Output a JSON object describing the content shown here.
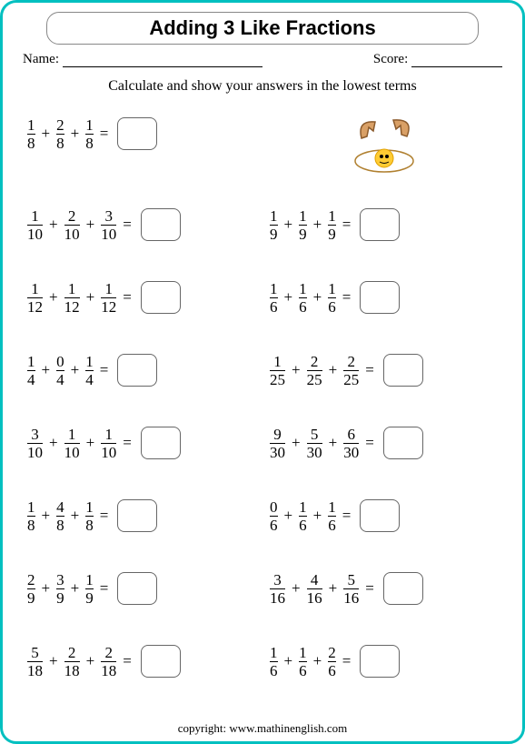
{
  "title": "Adding 3 Like Fractions",
  "name_label": "Name:",
  "score_label": "Score:",
  "instructions": "Calculate and show your answers in the lowest terms",
  "footer": "copyright:   www.mathinenglish.com",
  "problems": {
    "left": [
      {
        "f": [
          [
            1,
            8
          ],
          [
            2,
            8
          ],
          [
            1,
            8
          ]
        ]
      },
      {
        "f": [
          [
            1,
            10
          ],
          [
            2,
            10
          ],
          [
            3,
            10
          ]
        ]
      },
      {
        "f": [
          [
            1,
            12
          ],
          [
            1,
            12
          ],
          [
            1,
            12
          ]
        ]
      },
      {
        "f": [
          [
            1,
            4
          ],
          [
            0,
            4
          ],
          [
            1,
            4
          ]
        ]
      },
      {
        "f": [
          [
            3,
            10
          ],
          [
            1,
            10
          ],
          [
            1,
            10
          ]
        ]
      },
      {
        "f": [
          [
            1,
            8
          ],
          [
            4,
            8
          ],
          [
            1,
            8
          ]
        ]
      },
      {
        "f": [
          [
            2,
            9
          ],
          [
            3,
            9
          ],
          [
            1,
            9
          ]
        ]
      },
      {
        "f": [
          [
            5,
            18
          ],
          [
            2,
            18
          ],
          [
            2,
            18
          ]
        ]
      }
    ],
    "right": [
      null,
      {
        "f": [
          [
            1,
            9
          ],
          [
            1,
            9
          ],
          [
            1,
            9
          ]
        ]
      },
      {
        "f": [
          [
            1,
            6
          ],
          [
            1,
            6
          ],
          [
            1,
            6
          ]
        ]
      },
      {
        "f": [
          [
            1,
            25
          ],
          [
            2,
            25
          ],
          [
            2,
            25
          ]
        ]
      },
      {
        "f": [
          [
            9,
            30
          ],
          [
            5,
            30
          ],
          [
            6,
            30
          ]
        ]
      },
      {
        "f": [
          [
            0,
            6
          ],
          [
            1,
            6
          ],
          [
            1,
            6
          ]
        ]
      },
      {
        "f": [
          [
            3,
            16
          ],
          [
            4,
            16
          ],
          [
            5,
            16
          ]
        ]
      },
      {
        "f": [
          [
            1,
            6
          ],
          [
            1,
            6
          ],
          [
            2,
            6
          ]
        ]
      }
    ]
  },
  "ops": {
    "plus": "+",
    "equals": "="
  }
}
